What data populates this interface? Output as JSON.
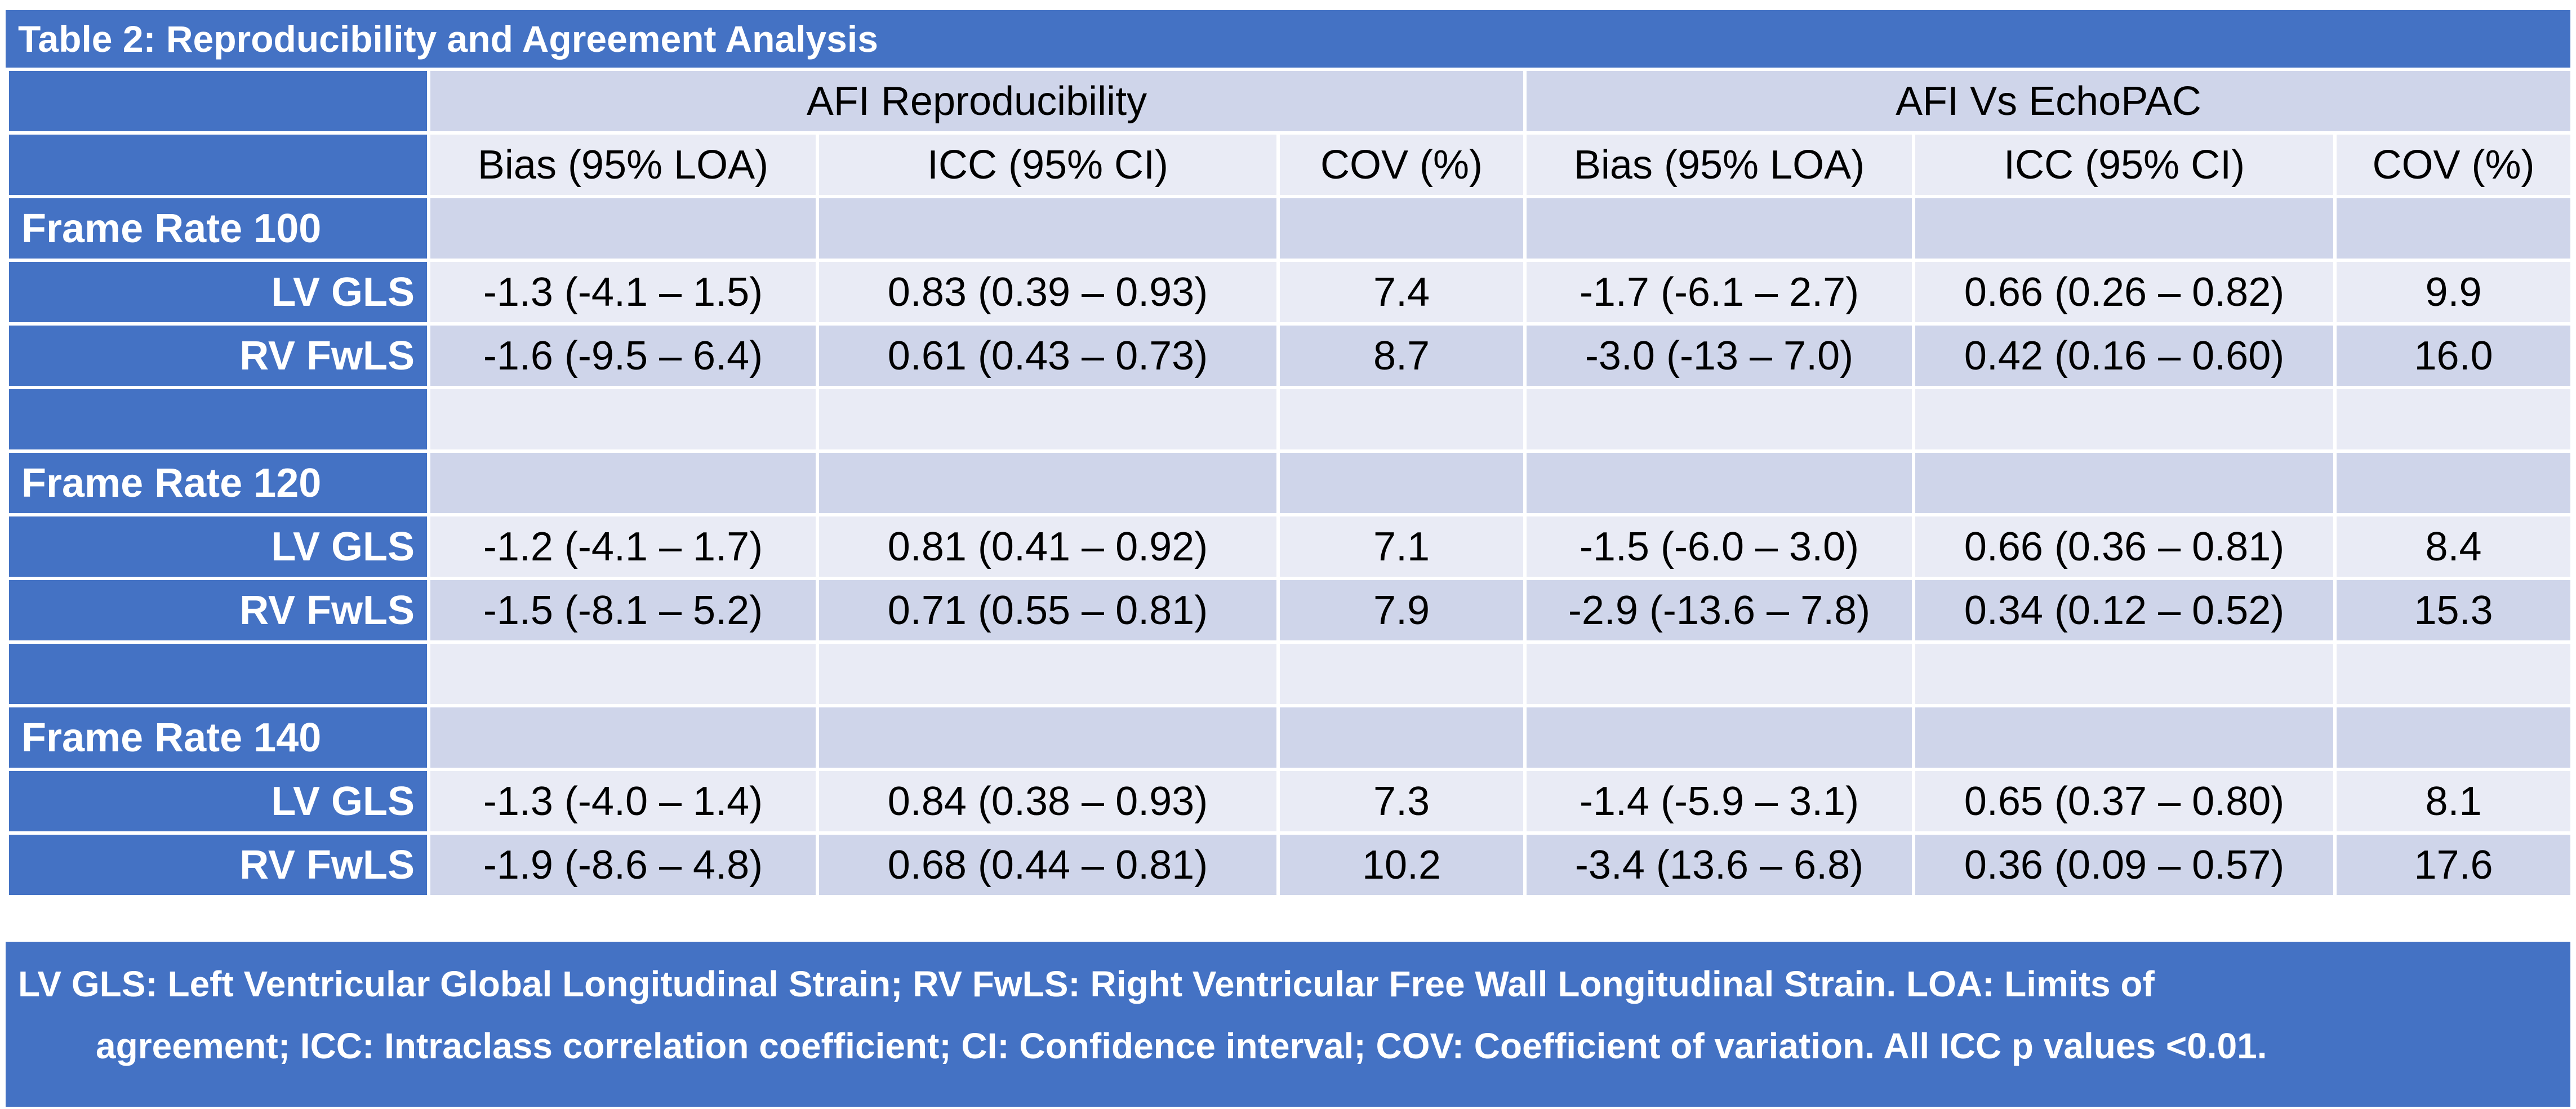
{
  "title": "Table 2: Reproducibility and Agreement Analysis",
  "group_headers": [
    "AFI Reproducibility",
    "AFI Vs EchoPAC"
  ],
  "column_headers": [
    "Bias (95% LOA)",
    "ICC (95% CI)",
    "COV (%)",
    "Bias (95% LOA)",
    "ICC (95% CI)",
    "COV (%)"
  ],
  "sections": [
    {
      "label": "Frame Rate 100",
      "rows": [
        {
          "label": "LV GLS",
          "cells": [
            "-1.3 (-4.1 – 1.5)",
            "0.83 (0.39 – 0.93)",
            "7.4",
            "-1.7 (-6.1 – 2.7)",
            "0.66 (0.26 – 0.82)",
            "9.9"
          ]
        },
        {
          "label": "RV FwLS",
          "cells": [
            "-1.6 (-9.5 – 6.4)",
            "0.61 (0.43 – 0.73)",
            "8.7",
            "-3.0 (-13 – 7.0)",
            "0.42 (0.16 – 0.60)",
            "16.0"
          ]
        }
      ]
    },
    {
      "label": "Frame Rate 120",
      "rows": [
        {
          "label": "LV GLS",
          "cells": [
            "-1.2 (-4.1 – 1.7)",
            "0.81 (0.41 – 0.92)",
            "7.1",
            "-1.5 (-6.0 – 3.0)",
            "0.66 (0.36 – 0.81)",
            "8.4"
          ]
        },
        {
          "label": "RV FwLS",
          "cells": [
            "-1.5 (-8.1 – 5.2)",
            "0.71 (0.55 – 0.81)",
            "7.9",
            "-2.9 (-13.6 – 7.8)",
            "0.34 (0.12 – 0.52)",
            "15.3"
          ]
        }
      ]
    },
    {
      "label": "Frame Rate 140",
      "rows": [
        {
          "label": "LV GLS",
          "cells": [
            "-1.3 (-4.0 – 1.4)",
            "0.84 (0.38 – 0.93)",
            "7.3",
            "-1.4 (-5.9 – 3.1)",
            "0.65 (0.37 – 0.80)",
            "8.1"
          ]
        },
        {
          "label": "RV FwLS",
          "cells": [
            "-1.9 (-8.6 – 4.8)",
            "0.68 (0.44 – 0.81)",
            "10.2",
            "-3.4 (13.6 – 6.8)",
            "0.36 (0.09 – 0.57)",
            "17.6"
          ]
        }
      ]
    }
  ],
  "footnote": {
    "line1": "LV GLS: Left Ventricular Global Longitudinal Strain; RV FwLS: Right Ventricular Free Wall Longitudinal Strain. LOA: Limits of",
    "line2": "agreement; ICC: Intraclass correlation coefficient; CI: Confidence interval; COV: Coefficient of variation. All ICC p values <0.01."
  },
  "colors": {
    "header_blue": "#4472c4",
    "band_dark": "#cfd5ea",
    "band_light": "#e9ebf5"
  }
}
